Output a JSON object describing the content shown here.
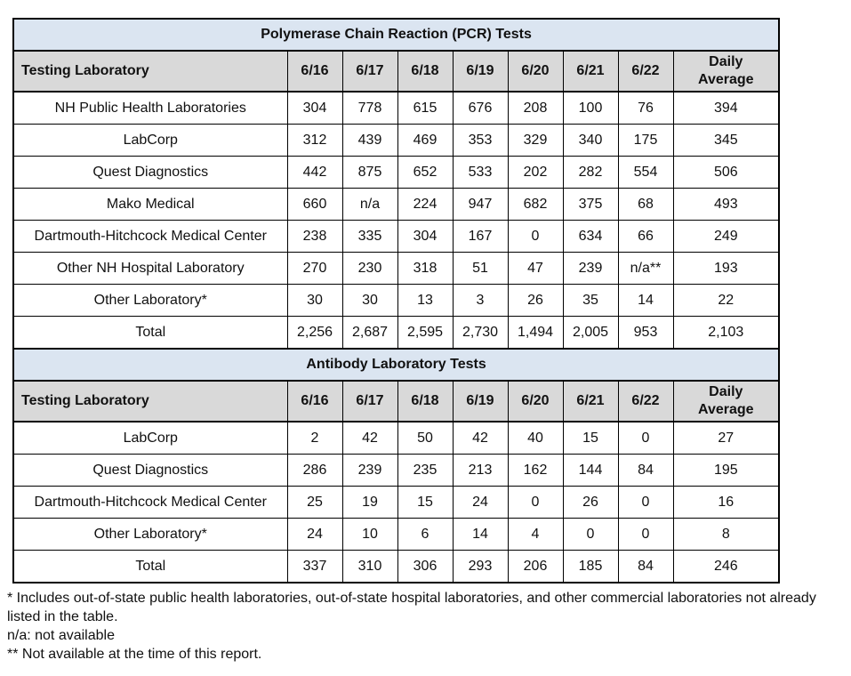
{
  "colors": {
    "title_bg": "#dbe5f1",
    "header_bg": "#d9d9d9",
    "border": "#000000",
    "text": "#111111"
  },
  "tables": [
    {
      "title": "Polymerase Chain Reaction (PCR) Tests",
      "header": {
        "lab": "Testing Laboratory",
        "dates": [
          "6/16",
          "6/17",
          "6/18",
          "6/19",
          "6/20",
          "6/21",
          "6/22"
        ],
        "daily_avg": "Daily\nAverage"
      },
      "rows": [
        {
          "lab": "NH Public Health Laboratories",
          "values": [
            "304",
            "778",
            "615",
            "676",
            "208",
            "100",
            "76",
            "394"
          ]
        },
        {
          "lab": "LabCorp",
          "values": [
            "312",
            "439",
            "469",
            "353",
            "329",
            "340",
            "175",
            "345"
          ]
        },
        {
          "lab": "Quest Diagnostics",
          "values": [
            "442",
            "875",
            "652",
            "533",
            "202",
            "282",
            "554",
            "506"
          ]
        },
        {
          "lab": "Mako Medical",
          "values": [
            "660",
            "n/a",
            "224",
            "947",
            "682",
            "375",
            "68",
            "493"
          ]
        },
        {
          "lab": "Dartmouth-Hitchcock Medical Center",
          "values": [
            "238",
            "335",
            "304",
            "167",
            "0",
            "634",
            "66",
            "249"
          ]
        },
        {
          "lab": "Other NH Hospital Laboratory",
          "values": [
            "270",
            "230",
            "318",
            "51",
            "47",
            "239",
            "n/a**",
            "193"
          ]
        },
        {
          "lab": "Other Laboratory*",
          "values": [
            "30",
            "30",
            "13",
            "3",
            "26",
            "35",
            "14",
            "22"
          ]
        }
      ],
      "total": {
        "label": "Total",
        "values": [
          "2,256",
          "2,687",
          "2,595",
          "2,730",
          "1,494",
          "2,005",
          "953",
          "2,103"
        ]
      }
    },
    {
      "title": "Antibody Laboratory Tests",
      "header": {
        "lab": "Testing Laboratory",
        "dates": [
          "6/16",
          "6/17",
          "6/18",
          "6/19",
          "6/20",
          "6/21",
          "6/22"
        ],
        "daily_avg": "Daily\nAverage"
      },
      "rows": [
        {
          "lab": "LabCorp",
          "values": [
            "2",
            "42",
            "50",
            "42",
            "40",
            "15",
            "0",
            "27"
          ]
        },
        {
          "lab": "Quest Diagnostics",
          "values": [
            "286",
            "239",
            "235",
            "213",
            "162",
            "144",
            "84",
            "195"
          ]
        },
        {
          "lab": "Dartmouth-Hitchcock Medical Center",
          "values": [
            "25",
            "19",
            "15",
            "24",
            "0",
            "26",
            "0",
            "16"
          ]
        },
        {
          "lab": "Other Laboratory*",
          "values": [
            "24",
            "10",
            "6",
            "14",
            "4",
            "0",
            "0",
            "8"
          ]
        }
      ],
      "total": {
        "label": "Total",
        "values": [
          "337",
          "310",
          "306",
          "293",
          "206",
          "185",
          "84",
          "246"
        ]
      }
    }
  ],
  "footnotes": [
    "* Includes out-of-state public health laboratories, out-of-state hospital laboratories, and other commercial laboratories not already listed in the table.",
    "n/a: not available",
    "** Not available at the time of this report."
  ]
}
